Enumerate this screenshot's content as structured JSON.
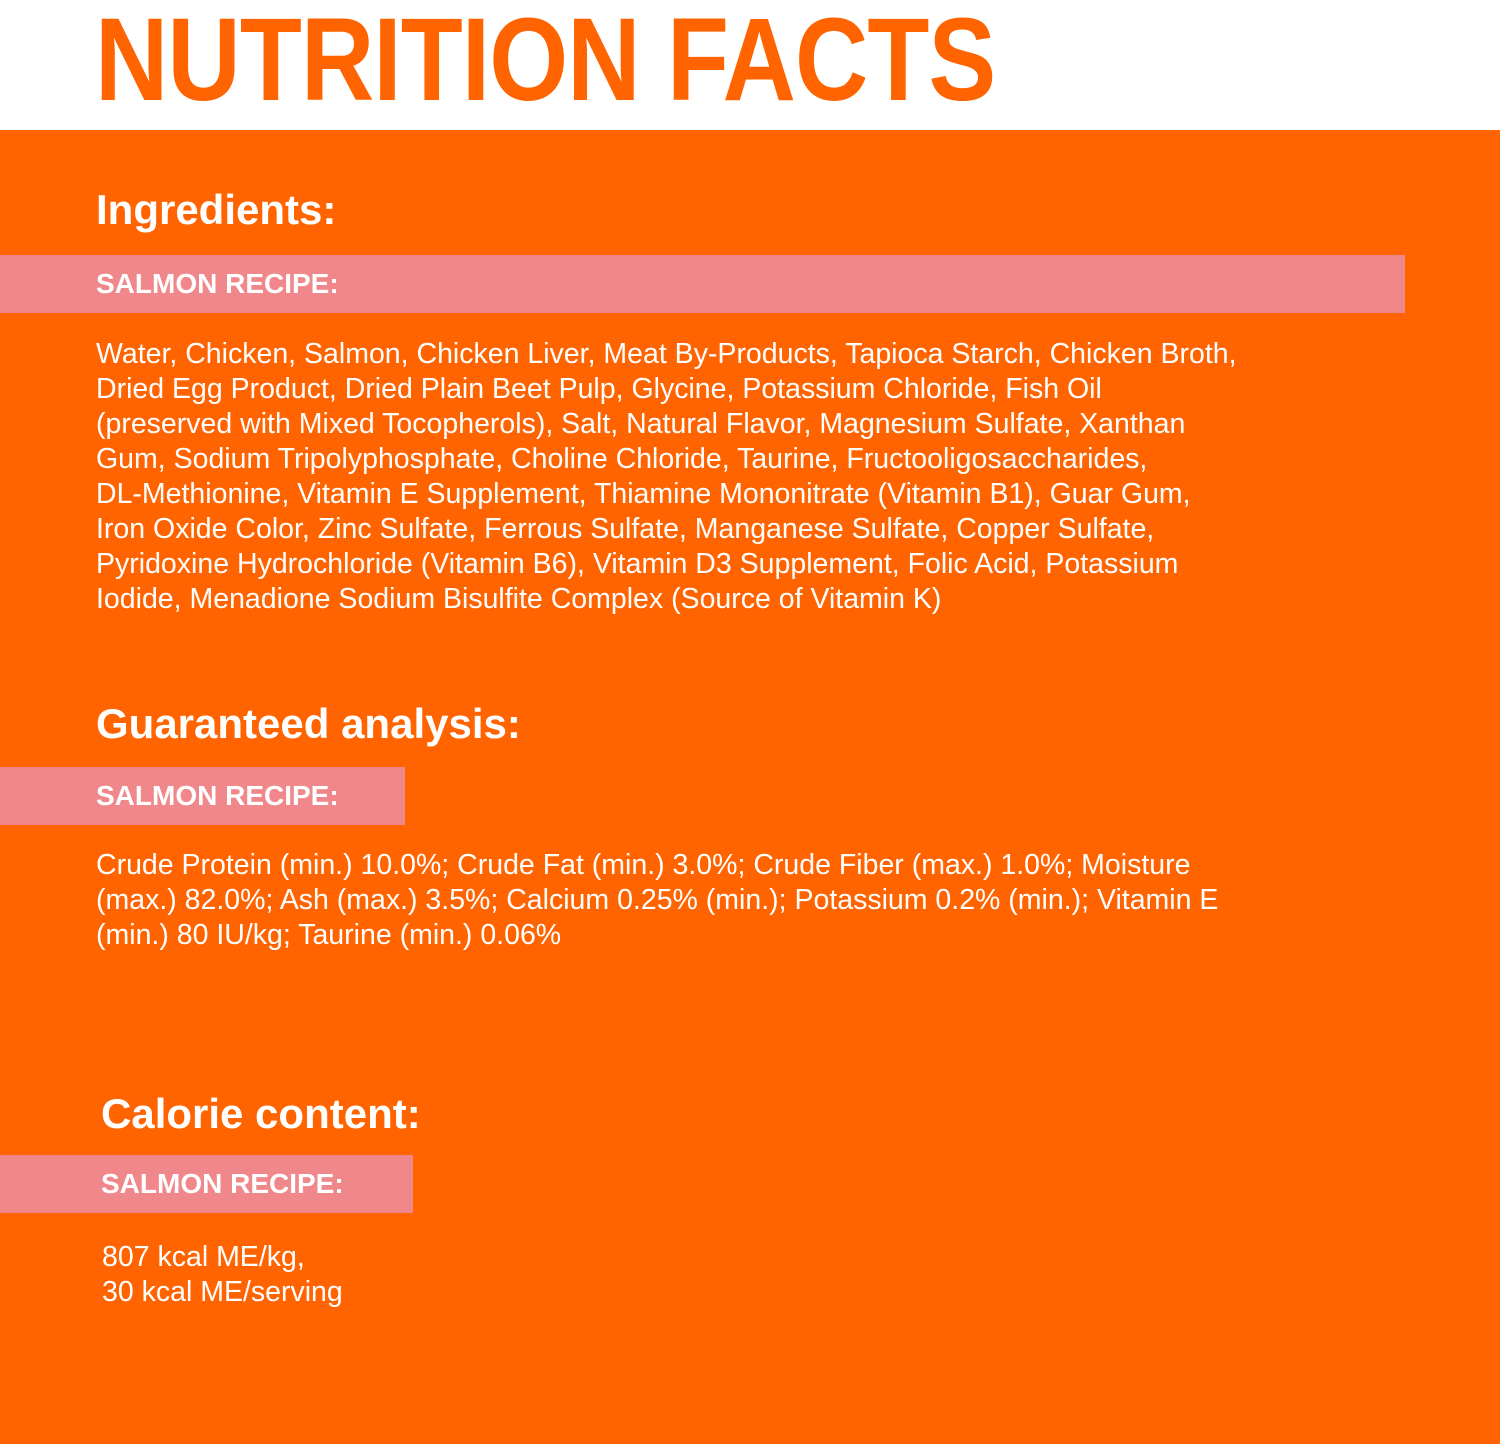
{
  "title": "NUTRITION FACTS",
  "colors": {
    "orange": "#ff6400",
    "pink_bar": "#ef878b",
    "text": "#ffffff"
  },
  "sections": {
    "ingredients": {
      "heading": "Ingredients:",
      "recipe_label": "SALMON RECIPE:",
      "lines": [
        "Water, Chicken, Salmon, Chicken Liver, Meat By-Products, Tapioca Starch, Chicken Broth,",
        "Dried Egg Product, Dried Plain Beet Pulp, Glycine, Potassium Chloride, Fish Oil",
        "(preserved with Mixed Tocopherols), Salt, Natural Flavor, Magnesium Sulfate, Xanthan",
        "Gum, Sodium Tripolyphosphate, Choline Chloride, Taurine, Fructooligosaccharides,",
        "DL-Methionine, Vitamin E Supplement, Thiamine Mononitrate (Vitamin B1), Guar Gum,",
        "Iron Oxide Color, Zinc Sulfate, Ferrous Sulfate, Manganese Sulfate, Copper Sulfate,",
        "Pyridoxine Hydrochloride (Vitamin B6), Vitamin D3 Supplement, Folic Acid, Potassium",
        "Iodide, Menadione Sodium Bisulfite Complex (Source of Vitamin K)"
      ]
    },
    "analysis": {
      "heading": "Guaranteed analysis:",
      "recipe_label": "SALMON RECIPE:",
      "lines": [
        "Crude Protein (min.) 10.0%; Crude Fat (min.) 3.0%; Crude Fiber (max.) 1.0%; Moisture",
        "(max.) 82.0%; Ash (max.) 3.5%; Calcium 0.25% (min.); Potassium 0.2% (min.); Vitamin E",
        "(min.) 80 IU/kg; Taurine (min.) 0.06%"
      ]
    },
    "calories": {
      "heading": "Calorie content:",
      "recipe_label": "SALMON RECIPE:",
      "lines": [
        "807 kcal ME/kg,",
        "30 kcal ME/serving"
      ]
    }
  }
}
